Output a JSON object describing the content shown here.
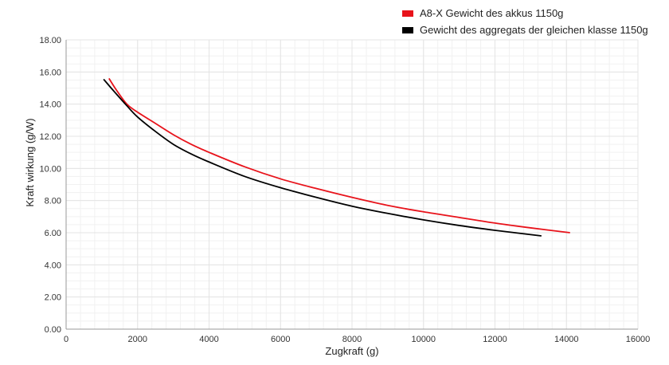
{
  "chart_data": {
    "type": "line",
    "xlabel": "Zugkraft (g)",
    "ylabel": "Kraft wirkung (g/W)",
    "xlim": [
      0,
      16000
    ],
    "ylim": [
      0,
      18
    ],
    "x_ticks": [
      "0",
      "2000",
      "4000",
      "6000",
      "8000",
      "10000",
      "12000",
      "14000",
      "16000"
    ],
    "y_ticks": [
      "0.00",
      "2.00",
      "4.00",
      "6.00",
      "8.00",
      "10.00",
      "12.00",
      "14.00",
      "16.00",
      "18.00"
    ],
    "grid": true,
    "legend_position": "top-right",
    "series": [
      {
        "name": "A8-X Gewicht des akkus 1150g",
        "color": "#e8131b",
        "x": [
          1200,
          1400,
          1700,
          2000,
          2500,
          3000,
          3500,
          4000,
          5000,
          6000,
          7000,
          8000,
          9000,
          10000,
          11000,
          12000,
          13000,
          14100
        ],
        "y": [
          15.6,
          14.9,
          14.0,
          13.5,
          12.8,
          12.1,
          11.5,
          11.0,
          10.1,
          9.35,
          8.75,
          8.2,
          7.7,
          7.3,
          6.95,
          6.6,
          6.3,
          6.0
        ]
      },
      {
        "name": "Gewicht des aggregats der gleichen klasse 1150g",
        "color": "#000000",
        "x": [
          1050,
          1300,
          1700,
          2000,
          2500,
          3000,
          3500,
          4000,
          5000,
          6000,
          7000,
          8000,
          9000,
          10000,
          11000,
          12000,
          13300
        ],
        "y": [
          15.55,
          14.9,
          13.9,
          13.2,
          12.3,
          11.5,
          10.9,
          10.4,
          9.5,
          8.8,
          8.2,
          7.65,
          7.2,
          6.8,
          6.45,
          6.15,
          5.8
        ]
      }
    ]
  }
}
